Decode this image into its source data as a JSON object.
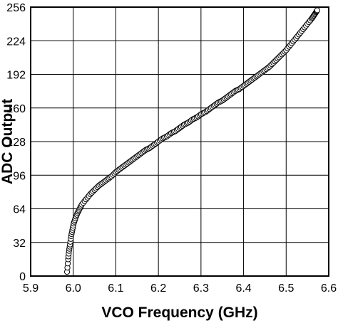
{
  "chart_data": {
    "type": "scatter",
    "title": "",
    "xlabel": "VCO Frequency (GHz)",
    "ylabel": "ADC Output",
    "xlim": [
      5.9,
      6.6
    ],
    "ylim": [
      0,
      256
    ],
    "xticks": [
      "5.9",
      "6.0",
      "6.1",
      "6.2",
      "6.3",
      "6.4",
      "6.5",
      "6.6"
    ],
    "yticks": [
      "0",
      "32",
      "64",
      "96",
      "128",
      "160",
      "192",
      "224",
      "256"
    ],
    "grid": true,
    "marker": "open-circle",
    "colors": {
      "marker_stroke": "#000000",
      "grid": "#000000",
      "background": "#ffffff"
    },
    "series": [
      {
        "x": [
          5.9855,
          5.988,
          5.99,
          5.9925,
          5.995,
          5.998,
          6.001,
          6.005,
          6.01,
          6.015,
          6.02,
          6.03,
          6.04,
          6.05,
          6.06,
          6.07,
          6.08,
          6.09,
          6.1,
          6.11,
          6.12,
          6.13,
          6.14,
          6.15,
          6.16,
          6.17,
          6.18,
          6.19,
          6.2,
          6.21,
          6.22,
          6.23,
          6.24,
          6.25,
          6.26,
          6.27,
          6.28,
          6.29,
          6.3,
          6.31,
          6.32,
          6.33,
          6.34,
          6.35,
          6.36,
          6.37,
          6.38,
          6.39,
          6.4,
          6.41,
          6.42,
          6.43,
          6.44,
          6.45,
          6.46,
          6.47,
          6.48,
          6.49,
          6.5,
          6.51,
          6.52,
          6.53,
          6.54,
          6.55,
          6.56,
          6.565,
          6.57,
          6.573
        ],
        "y": [
          4,
          16,
          24,
          30,
          38,
          44,
          50,
          55,
          60,
          64,
          68,
          73,
          78,
          82,
          86,
          89,
          92,
          95,
          99,
          102,
          105,
          108,
          111,
          114,
          117,
          120,
          122,
          125,
          128,
          131,
          133,
          136,
          138,
          141,
          144,
          146,
          149,
          151,
          154,
          156,
          159,
          162,
          165,
          167,
          170,
          173,
          176,
          178,
          181,
          184,
          187,
          190,
          193,
          196,
          199,
          203,
          207,
          211,
          215,
          220,
          225,
          230,
          235,
          240,
          245,
          248,
          251,
          253
        ]
      }
    ]
  }
}
